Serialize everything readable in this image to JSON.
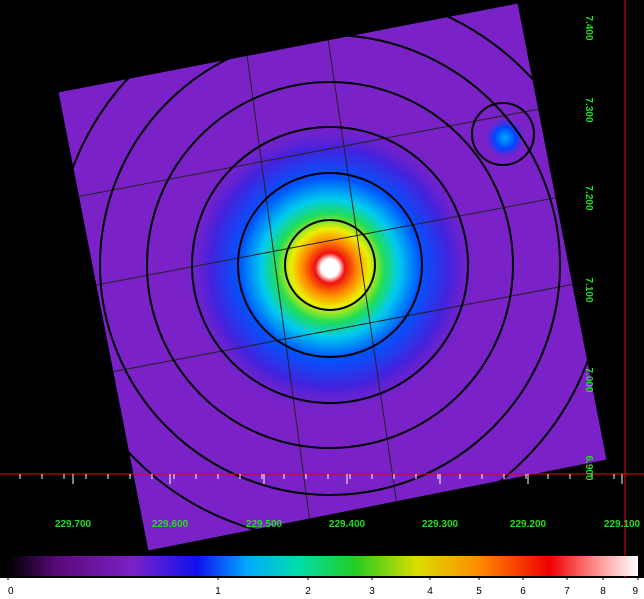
{
  "image_viewer": {
    "x_axis_labels": [
      "229.700",
      "229.600",
      "229.500",
      "229.400",
      "229.300",
      "229.200",
      "229.100"
    ],
    "y_axis_labels": [
      "7.400",
      "7.300",
      "7.200",
      "7.100",
      "7.000",
      "6.900"
    ],
    "colorbar_labels": [
      "0",
      "1",
      "2",
      "3",
      "4",
      "5",
      "6",
      "7",
      "8",
      "9"
    ]
  }
}
